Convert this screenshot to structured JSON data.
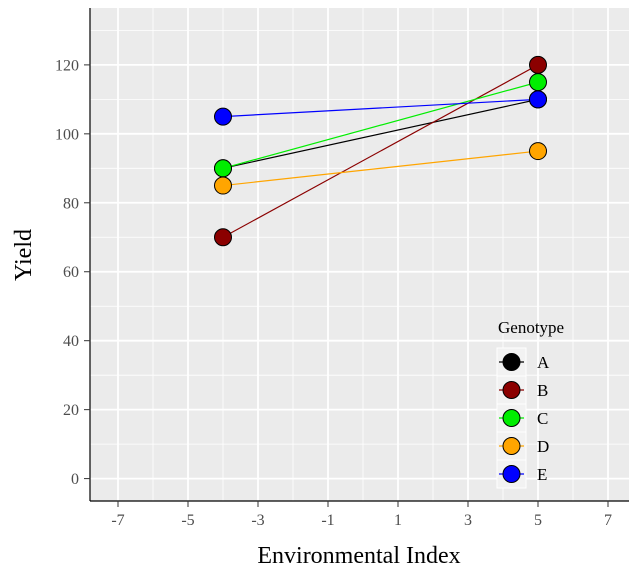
{
  "chart_data": {
    "type": "line",
    "title": "",
    "xlabel": "Environmental Index",
    "ylabel": "Yield",
    "x": [
      -4,
      5
    ],
    "xlim": [
      -7.8,
      7.6
    ],
    "ylim": [
      -6.5,
      136.5
    ],
    "xticks": [
      "-7",
      "-5",
      "-3",
      "-1",
      "1",
      "3",
      "5",
      "7"
    ],
    "yticks": [
      "0",
      "20",
      "40",
      "60",
      "80",
      "100",
      "120"
    ],
    "grid": true,
    "legend": {
      "title": "Genotype",
      "position": "bottom-right inside"
    },
    "series": [
      {
        "name": "A",
        "color": "#000000",
        "values": [
          90,
          110
        ]
      },
      {
        "name": "B",
        "color": "#8b0000",
        "values": [
          70,
          120
        ]
      },
      {
        "name": "C",
        "color": "#00ee00",
        "values": [
          90,
          115
        ]
      },
      {
        "name": "D",
        "color": "#ffa500",
        "values": [
          85,
          95
        ]
      },
      {
        "name": "E",
        "color": "#0000ff",
        "values": [
          105,
          110
        ]
      }
    ]
  }
}
